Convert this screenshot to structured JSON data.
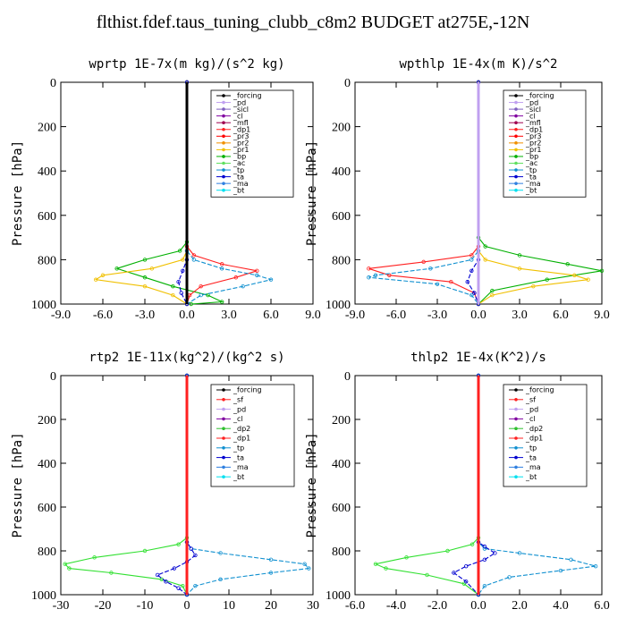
{
  "figure": {
    "title": "flthist.fdef.taus_tuning_clubb_c8m2  BUDGET at275E,-12N"
  },
  "chart_data": [
    {
      "type": "line",
      "title": "wprtp   1E-7x(m kg)/(s^2 kg)",
      "ylabel": "Pressure [hPa]",
      "xlim": [
        -9,
        9
      ],
      "ylim": [
        0,
        1000
      ],
      "y_inverted": true,
      "xticks": [
        "-9.0",
        "-6.0",
        "-3.0",
        "0.0",
        "3.0",
        "6.0",
        "9.0"
      ],
      "xtick_values": [
        -9,
        -6,
        -3,
        0,
        3,
        6,
        9
      ],
      "yticks": [
        "0",
        "200",
        "400",
        "600",
        "800",
        "1000"
      ],
      "ytick_values": [
        0,
        200,
        400,
        600,
        800,
        1000
      ],
      "legend": [
        "_forcing",
        "_pd",
        "_sicl",
        "_cl",
        "_mfl",
        "_dp1",
        "_pr3",
        "_pr2",
        "_pr1",
        "_bp",
        "_ac",
        "_tp",
        "_ta",
        "_ma",
        "_bt"
      ],
      "series": [
        {
          "name": "_bp",
          "color": "#00b000",
          "x": [
            0,
            0,
            -0.5,
            -3.0,
            -5.0,
            -3.0,
            -1.0,
            1.5,
            2.5,
            0.3
          ],
          "y": [
            0,
            720,
            760,
            800,
            840,
            880,
            920,
            960,
            990,
            1000
          ]
        },
        {
          "name": "_pr1",
          "color": "#f0c000",
          "x": [
            0,
            0,
            -0.3,
            -2.5,
            -6.0,
            -6.5,
            -3.0,
            -1.0,
            0
          ],
          "y": [
            0,
            760,
            800,
            840,
            870,
            890,
            920,
            960,
            1000
          ]
        },
        {
          "name": "_dp1",
          "color": "#ff2020",
          "x": [
            0,
            0,
            0.5,
            2.5,
            5.0,
            3.5,
            1.0,
            0.2,
            0
          ],
          "y": [
            0,
            740,
            780,
            820,
            850,
            880,
            920,
            960,
            1000
          ]
        },
        {
          "name": "_tp",
          "color": "#1090d0",
          "x": [
            0,
            0,
            0.5,
            2.5,
            5.0,
            6.0,
            4.0,
            1.0,
            0
          ],
          "y": [
            0,
            760,
            800,
            840,
            870,
            890,
            920,
            960,
            1000
          ]
        },
        {
          "name": "_ta",
          "color": "#0000d0",
          "x": [
            0,
            0,
            -0.3,
            -0.6,
            -0.4,
            0
          ],
          "y": [
            0,
            800,
            850,
            900,
            950,
            1000
          ]
        },
        {
          "name": "_forcing",
          "color": "#000000",
          "x": [
            0,
            0
          ],
          "y": [
            0,
            1000
          ]
        }
      ]
    },
    {
      "type": "line",
      "title": "wpthlp   1E-4x(m K)/s^2",
      "ylabel": "Pressure [hPa]",
      "xlim": [
        -9,
        9
      ],
      "ylim": [
        0,
        1000
      ],
      "y_inverted": true,
      "xticks": [
        "-9.0",
        "-6.0",
        "-3.0",
        "0.0",
        "3.0",
        "6.0",
        "9.0"
      ],
      "xtick_values": [
        -9,
        -6,
        -3,
        0,
        3,
        6,
        9
      ],
      "yticks": [
        "0",
        "200",
        "400",
        "600",
        "800",
        "1000"
      ],
      "ytick_values": [
        0,
        200,
        400,
        600,
        800,
        1000
      ],
      "legend": [
        "_forcing",
        "_pd",
        "_sicl",
        "_cl",
        "_mfl",
        "_dp1",
        "_pr3",
        "_pr2",
        "_pr1",
        "_bp",
        "_ac",
        "_tp",
        "_ta",
        "_ma",
        "_bt"
      ],
      "series": [
        {
          "name": "_bp",
          "color": "#00b000",
          "x": [
            0,
            0,
            0.5,
            3.0,
            6.5,
            9.0,
            5.0,
            1.0,
            0
          ],
          "y": [
            0,
            700,
            740,
            780,
            820,
            850,
            890,
            940,
            1000
          ]
        },
        {
          "name": "_pr1",
          "color": "#f0c000",
          "x": [
            0,
            0,
            0.5,
            3.0,
            7.0,
            8.0,
            4.0,
            1.0,
            0
          ],
          "y": [
            0,
            760,
            800,
            840,
            870,
            890,
            920,
            960,
            1000
          ]
        },
        {
          "name": "_dp1",
          "color": "#ff2020",
          "x": [
            0,
            0,
            -0.5,
            -4.0,
            -8.0,
            -6.5,
            -2.0,
            -0.3,
            0
          ],
          "y": [
            0,
            740,
            780,
            810,
            840,
            870,
            900,
            950,
            1000
          ]
        },
        {
          "name": "_tp",
          "color": "#1090d0",
          "x": [
            0,
            0,
            -0.5,
            -3.5,
            -7.5,
            -8.0,
            -3.0,
            -0.5,
            0
          ],
          "y": [
            0,
            760,
            800,
            840,
            870,
            880,
            910,
            960,
            1000
          ]
        },
        {
          "name": "_ta",
          "color": "#0000d0",
          "x": [
            0,
            0,
            -0.5,
            -0.8,
            -0.3,
            0
          ],
          "y": [
            0,
            800,
            850,
            900,
            950,
            1000
          ]
        },
        {
          "name": "_sicl",
          "color": "#c0a0f0",
          "x": [
            0,
            0
          ],
          "y": [
            0,
            1000
          ]
        }
      ]
    },
    {
      "type": "line",
      "title": "rtp2   1E-11x(kg^2)/(kg^2 s)",
      "ylabel": "Pressure [hPa]",
      "xlim": [
        -30,
        30
      ],
      "ylim": [
        0,
        1000
      ],
      "y_inverted": true,
      "xticks": [
        "-30",
        "-20",
        "-10",
        "0",
        "10",
        "20",
        "30"
      ],
      "xtick_values": [
        -30,
        -20,
        -10,
        0,
        10,
        20,
        30
      ],
      "yticks": [
        "0",
        "200",
        "400",
        "600",
        "800",
        "1000"
      ],
      "ytick_values": [
        0,
        200,
        400,
        600,
        800,
        1000
      ],
      "legend": [
        "_forcing",
        "_sf",
        "_pd",
        "_cl",
        "_dp2",
        "_dp1",
        "_tp",
        "_ta",
        "_ma",
        "_bt"
      ],
      "series": [
        {
          "name": "_dp1",
          "color": "#30e030",
          "x": [
            0,
            0,
            -2,
            -10,
            -22,
            -29,
            -28,
            -18,
            -6,
            -1,
            0
          ],
          "y": [
            0,
            740,
            770,
            800,
            830,
            860,
            880,
            900,
            930,
            960,
            1000
          ]
        },
        {
          "name": "_tp",
          "color": "#1090d0",
          "x": [
            0,
            0,
            1,
            8,
            20,
            28,
            29,
            20,
            8,
            2,
            0
          ],
          "y": [
            0,
            760,
            790,
            810,
            840,
            860,
            880,
            900,
            930,
            960,
            1000
          ]
        },
        {
          "name": "_ta",
          "color": "#0000d0",
          "x": [
            0,
            0,
            1,
            2,
            0,
            -3,
            -7,
            -5,
            -2,
            0
          ],
          "y": [
            0,
            760,
            790,
            820,
            850,
            880,
            910,
            940,
            970,
            1000
          ]
        },
        {
          "name": "_forcing",
          "color": "#ff2020",
          "x": [
            0,
            0
          ],
          "y": [
            0,
            1000
          ]
        }
      ]
    },
    {
      "type": "line",
      "title": "thlp2   1E-4x(K^2)/s",
      "ylabel": "Pressure [hPa]",
      "xlim": [
        -6,
        6
      ],
      "ylim": [
        0,
        1000
      ],
      "y_inverted": true,
      "xticks": [
        "-6.0",
        "-4.0",
        "-2.0",
        "0.0",
        "2.0",
        "4.0",
        "6.0"
      ],
      "xtick_values": [
        -6,
        -4,
        -2,
        0,
        2,
        4,
        6
      ],
      "yticks": [
        "0",
        "200",
        "400",
        "600",
        "800",
        "1000"
      ],
      "ytick_values": [
        0,
        200,
        400,
        600,
        800,
        1000
      ],
      "legend": [
        "_forcing",
        "_sf",
        "_pd",
        "_cl",
        "_dp2",
        "_dp1",
        "_tp",
        "_ta",
        "_ma",
        "_bt"
      ],
      "series": [
        {
          "name": "_dp1",
          "color": "#30e030",
          "x": [
            0,
            0,
            -0.3,
            -1.5,
            -3.5,
            -5.0,
            -4.5,
            -2.5,
            -0.7,
            0
          ],
          "y": [
            0,
            740,
            770,
            800,
            830,
            860,
            880,
            910,
            950,
            1000
          ]
        },
        {
          "name": "_tp",
          "color": "#1090d0",
          "x": [
            0,
            0,
            0.3,
            2.0,
            4.5,
            5.7,
            4.0,
            1.5,
            0.3,
            0
          ],
          "y": [
            0,
            760,
            790,
            810,
            840,
            870,
            890,
            920,
            960,
            1000
          ]
        },
        {
          "name": "_ta",
          "color": "#0000d0",
          "x": [
            0,
            0,
            0.3,
            0.8,
            0.3,
            -0.6,
            -1.2,
            -0.6,
            0
          ],
          "y": [
            0,
            760,
            780,
            810,
            840,
            870,
            900,
            940,
            1000
          ]
        },
        {
          "name": "_forcing",
          "color": "#ff2020",
          "x": [
            0,
            0
          ],
          "y": [
            0,
            1000
          ]
        }
      ]
    }
  ],
  "legend_colors": {
    "_forcing": "#000000",
    "_sf": "#ff2020",
    "_pd": "#c0a0f0",
    "_sicl": "#8060c0",
    "_cl": "#8000a0",
    "_mfl": "#a00050",
    "_dp1": "#ff2020",
    "_dp2": "#30c030",
    "_pr3": "#ff0000",
    "_pr2": "#f09000",
    "_pr1": "#f0c000",
    "_bp": "#00b000",
    "_ac": "#60e060",
    "_tp": "#1090d0",
    "_ta": "#0000d0",
    "_ma": "#3080e0",
    "_bt": "#00e0f0"
  }
}
